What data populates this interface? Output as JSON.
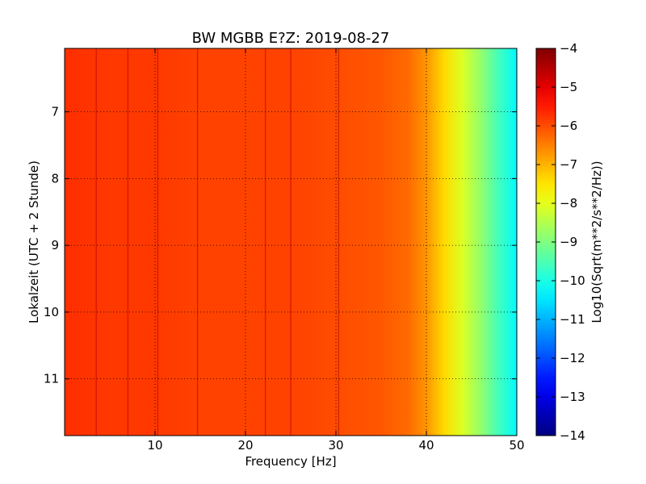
{
  "chart_data": {
    "type": "heatmap",
    "title": "BW MGBB E?Z: 2019-08-27",
    "xlabel": "Frequency [Hz]",
    "ylabel": "Lokalzeit (UTC + 2 Stunde)",
    "colorbar_label": "Log10(Sqrt(m**2/s**2/Hz))",
    "colormap": "jet",
    "grid": true,
    "xlim": [
      0,
      50
    ],
    "ylim": [
      11.85,
      6.05
    ],
    "clim": [
      -14,
      -4
    ],
    "xticks": [
      10,
      20,
      30,
      40,
      50
    ],
    "xtick_labels": [
      "10",
      "20",
      "30",
      "40",
      "50"
    ],
    "yticks": [
      7,
      8,
      9,
      10,
      11
    ],
    "ytick_labels": [
      "7",
      "8",
      "9",
      "10",
      "11"
    ],
    "cticks": [
      -4,
      -5,
      -6,
      -7,
      -8,
      -9,
      -10,
      -11,
      -12,
      -13,
      -14
    ],
    "ctick_labels": [
      "−4",
      "−5",
      "−6",
      "−7",
      "−8",
      "−9",
      "−10",
      "−11",
      "−12",
      "−13",
      "−14"
    ],
    "spectrum_profile": {
      "frequency_hz": [
        0,
        5,
        10,
        15,
        20,
        25,
        30,
        35,
        38,
        40,
        42,
        44,
        46,
        48,
        50
      ],
      "log10_amplitude": [
        -5.7,
        -5.8,
        -5.8,
        -5.9,
        -5.9,
        -5.9,
        -6.0,
        -6.1,
        -6.3,
        -6.7,
        -7.4,
        -8.1,
        -8.8,
        -9.6,
        -10.3
      ]
    },
    "spectral_lines_hz": [
      3.5,
      7.0,
      10.3,
      14.7,
      22.2,
      25.0,
      30.3
    ]
  }
}
